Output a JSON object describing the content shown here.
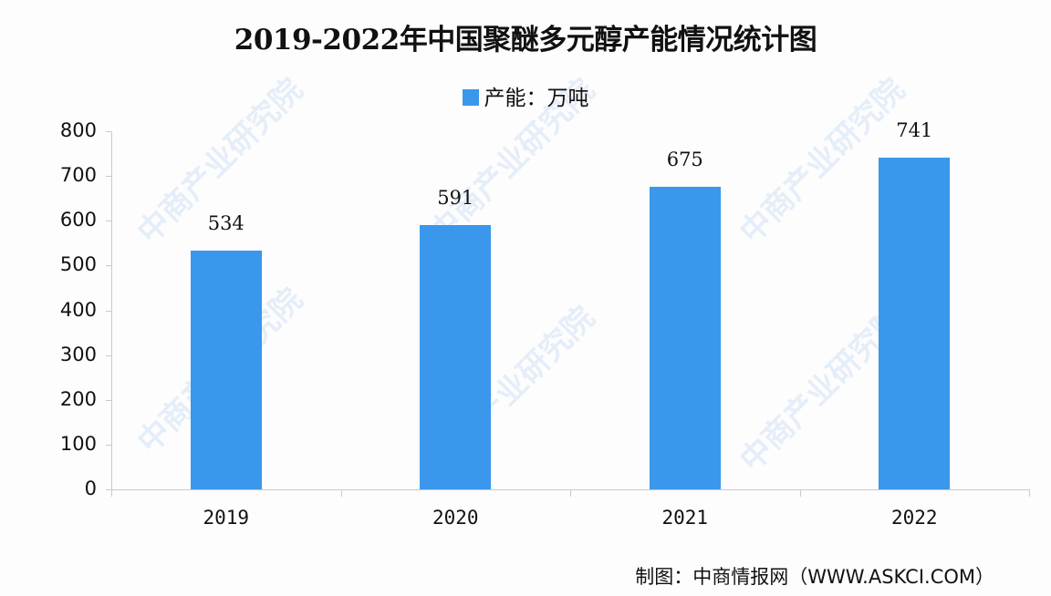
{
  "title": "2019-2022年中国聚醚多元醇产能情况统计图",
  "legend": {
    "label": "产能：万吨",
    "color": "#3a97ec"
  },
  "source": "制图：中商情报网（WWW.ASKCI.COM）",
  "watermark": "中商产业研究院",
  "y_ticks": [
    "0",
    "100",
    "200",
    "300",
    "400",
    "500",
    "600",
    "700",
    "800"
  ],
  "bars": [
    {
      "year": "2019",
      "value": "534"
    },
    {
      "year": "2020",
      "value": "591"
    },
    {
      "year": "2021",
      "value": "675"
    },
    {
      "year": "2022",
      "value": "741"
    }
  ],
  "chart_data": {
    "type": "bar",
    "title": "2019-2022年中国聚醚多元醇产能情况统计图",
    "categories": [
      "2019",
      "2020",
      "2021",
      "2022"
    ],
    "series": [
      {
        "name": "产能：万吨",
        "values": [
          534,
          591,
          675,
          741
        ]
      }
    ],
    "xlabel": "",
    "ylabel": "",
    "ylim": [
      0,
      800
    ],
    "yticks": [
      0,
      100,
      200,
      300,
      400,
      500,
      600,
      700,
      800
    ],
    "grid": false,
    "legend_position": "top",
    "bar_color": "#3a97ec",
    "data_labels": true
  }
}
